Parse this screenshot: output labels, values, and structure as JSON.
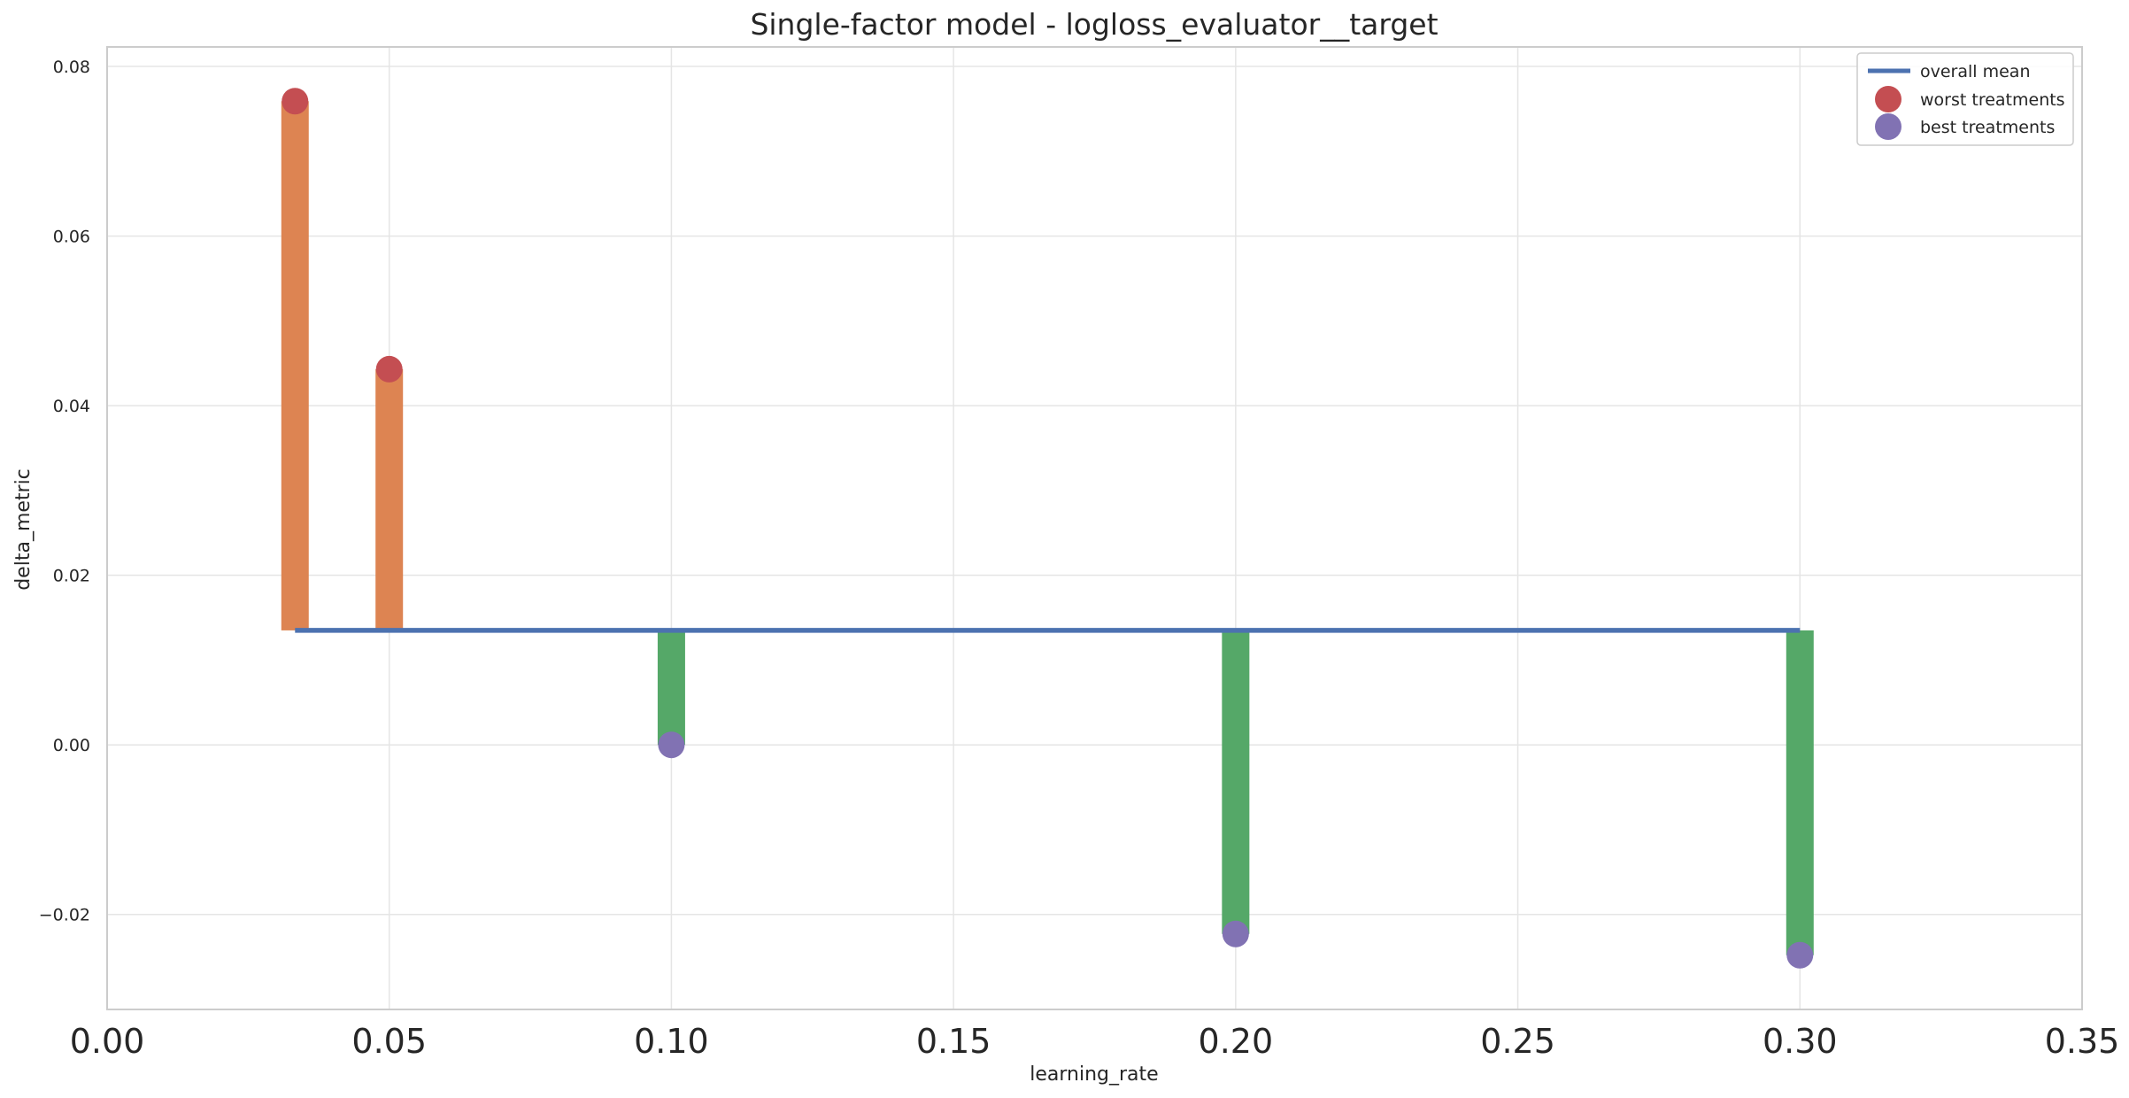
{
  "chart_data": {
    "type": "bar",
    "title": "Single-factor model - logloss_evaluator__target",
    "xlabel": "learning_rate",
    "ylabel": "delta_metric",
    "xlim": [
      0.0,
      0.35
    ],
    "ylim": [
      -0.0312,
      0.0823
    ],
    "xticks": [
      0.0,
      0.05,
      0.1,
      0.15,
      0.2,
      0.25,
      0.3,
      0.35
    ],
    "xtick_labels": [
      "0.00",
      "0.05",
      "0.10",
      "0.15",
      "0.20",
      "0.25",
      "0.30",
      "0.35"
    ],
    "yticks": [
      -0.02,
      0.0,
      0.02,
      0.04,
      0.06,
      0.08
    ],
    "ytick_labels": [
      "−0.02",
      "0.00",
      "0.02",
      "0.04",
      "0.06",
      "0.08"
    ],
    "grid": true,
    "legend_position": "top-right",
    "overall_mean": {
      "name": "overall mean",
      "value": 0.0135,
      "x_range": [
        0.0333,
        0.3
      ],
      "color": "#4c72b0"
    },
    "bars": [
      {
        "x": 0.0333,
        "value": 0.0759,
        "color": "#dd8452"
      },
      {
        "x": 0.05,
        "value": 0.0443,
        "color": "#dd8452"
      },
      {
        "x": 0.1,
        "value": 0.0,
        "color": "#55a868"
      },
      {
        "x": 0.2,
        "value": -0.0223,
        "color": "#55a868"
      },
      {
        "x": 0.3,
        "value": -0.0248,
        "color": "#55a868"
      }
    ],
    "series": [
      {
        "name": "worst treatments",
        "color": "#c44e52",
        "points": [
          {
            "x": 0.0333,
            "y": 0.0759
          },
          {
            "x": 0.05,
            "y": 0.0443
          }
        ]
      },
      {
        "name": "best treatments",
        "color": "#8172b3",
        "points": [
          {
            "x": 0.1,
            "y": 0.0
          },
          {
            "x": 0.2,
            "y": -0.0223
          },
          {
            "x": 0.3,
            "y": -0.0248
          }
        ]
      }
    ]
  },
  "colors": {
    "grid": "#e5e5e5",
    "axes_edge": "#cccccc",
    "text": "#262626",
    "legend_edge": "#cccccc"
  }
}
